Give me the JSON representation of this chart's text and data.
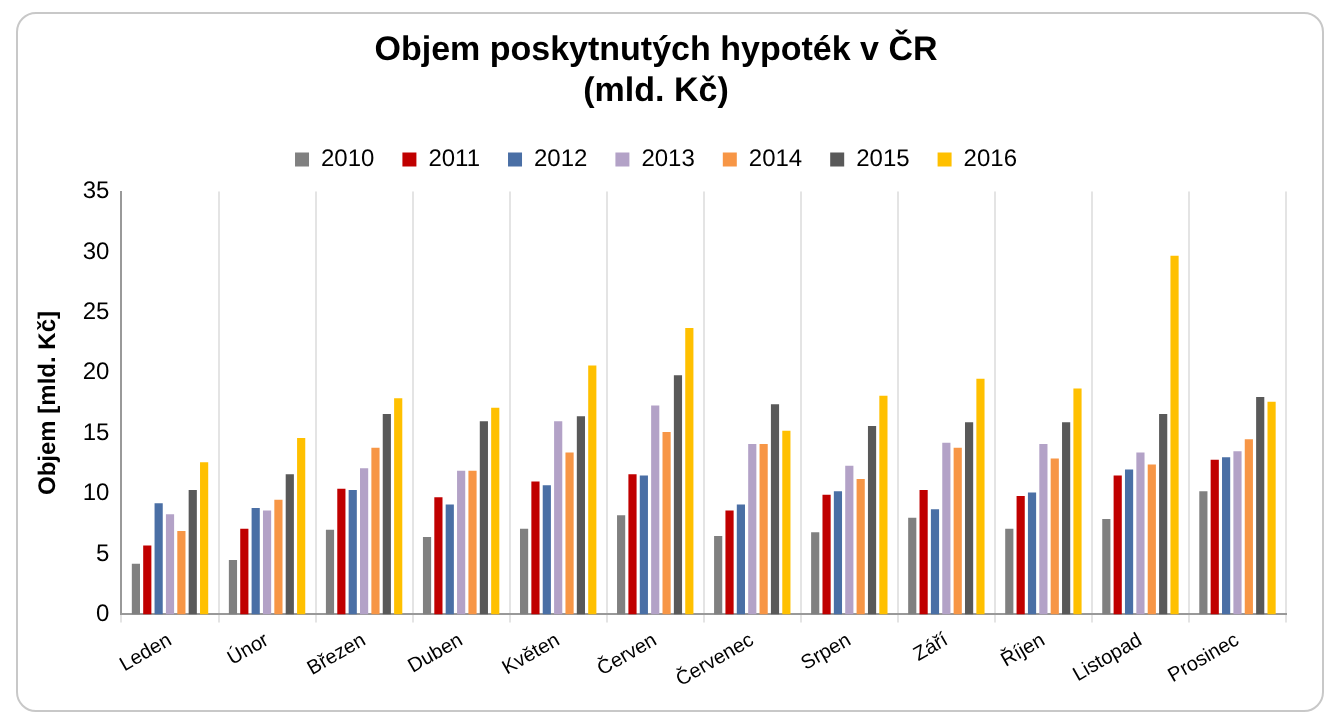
{
  "chart_data": {
    "type": "bar",
    "title": "Objem poskytnutých hypoték v ČR\n(mld. Kč)",
    "ylabel": "Objem [mld. Kč]",
    "categories": [
      "Leden",
      "Únor",
      "Březen",
      "Duben",
      "Květen",
      "Červen",
      "Červenec",
      "Srpen",
      "Září",
      "Říjen",
      "Listopad",
      "Prosinec"
    ],
    "series": [
      {
        "name": "2010",
        "color": "#808080",
        "values": [
          4.2,
          4.5,
          7.0,
          6.4,
          7.1,
          8.2,
          6.5,
          6.8,
          8.0,
          7.1,
          7.9,
          10.2
        ]
      },
      {
        "name": "2011",
        "color": "#c00000",
        "values": [
          5.7,
          7.1,
          10.4,
          9.7,
          11.0,
          11.6,
          8.6,
          9.9,
          10.3,
          9.8,
          11.5,
          12.8
        ]
      },
      {
        "name": "2012",
        "color": "#4a6fa5",
        "values": [
          9.2,
          8.8,
          10.3,
          9.1,
          10.7,
          11.5,
          9.1,
          10.2,
          8.7,
          10.1,
          12.0,
          13.0
        ]
      },
      {
        "name": "2013",
        "color": "#b3a2c7",
        "values": [
          8.3,
          8.6,
          12.1,
          11.9,
          16.0,
          17.3,
          14.1,
          12.3,
          14.2,
          14.1,
          13.4,
          13.5
        ]
      },
      {
        "name": "2014",
        "color": "#f79646",
        "values": [
          6.9,
          9.5,
          13.8,
          11.9,
          13.4,
          15.1,
          14.1,
          11.2,
          13.8,
          12.9,
          12.4,
          14.5
        ]
      },
      {
        "name": "2015",
        "color": "#595959",
        "values": [
          10.3,
          11.6,
          16.6,
          16.0,
          16.4,
          19.8,
          17.4,
          15.6,
          15.9,
          15.9,
          16.6,
          18.0
        ]
      },
      {
        "name": "2016",
        "color": "#ffc000",
        "values": [
          12.6,
          14.6,
          17.9,
          17.1,
          20.6,
          23.7,
          15.2,
          18.1,
          19.5,
          18.7,
          29.7,
          17.6
        ]
      }
    ],
    "ylim": [
      0,
      35
    ],
    "yticks": [
      0,
      5,
      10,
      15,
      20,
      25,
      30,
      35
    ],
    "grid": "x",
    "legend": "top"
  }
}
